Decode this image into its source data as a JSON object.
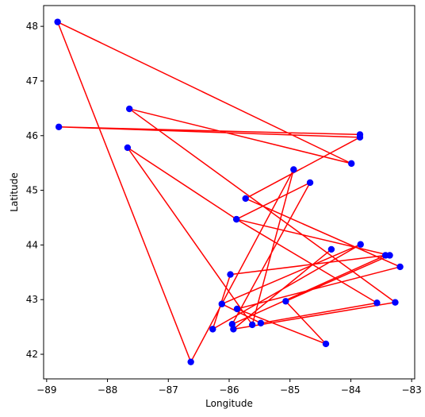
{
  "chart_data": {
    "type": "scatter",
    "title": "",
    "xlabel": "Longitude",
    "ylabel": "Latitude",
    "xlim": [
      -89.05,
      -82.95
    ],
    "ylim": [
      41.55,
      48.38
    ],
    "xticks": [
      -89,
      -88,
      -87,
      -86,
      -85,
      -84,
      -83
    ],
    "yticks": [
      42,
      43,
      44,
      45,
      46,
      47,
      48
    ],
    "grid": false,
    "legend": "none",
    "points_color": "#0000ff",
    "line_color": "#ff0000",
    "series": [
      {
        "x": [
          -83.85,
          -88.8,
          -83.85,
          -85.73,
          -83.19,
          -85.87,
          -84.41,
          -85.07,
          -83.36,
          -85.88,
          -84.67,
          -85.95,
          -83.43,
          -85.98,
          -86.27,
          -83.84,
          -86.12,
          -85.48,
          -83.57,
          -85.88,
          -87.67,
          -85.62,
          -84.94,
          -86.63,
          -88.82,
          -83.99,
          -87.64,
          -83.27,
          -85.93,
          -84.32
        ],
        "y": [
          46.02,
          46.16,
          45.97,
          44.85,
          43.6,
          42.83,
          42.19,
          42.97,
          43.81,
          44.47,
          45.14,
          42.55,
          43.81,
          43.46,
          42.46,
          44.01,
          42.92,
          42.57,
          42.94,
          44.47,
          45.78,
          42.54,
          45.38,
          41.86,
          48.08,
          45.49,
          46.49,
          42.95,
          42.46,
          43.92
        ]
      }
    ]
  }
}
